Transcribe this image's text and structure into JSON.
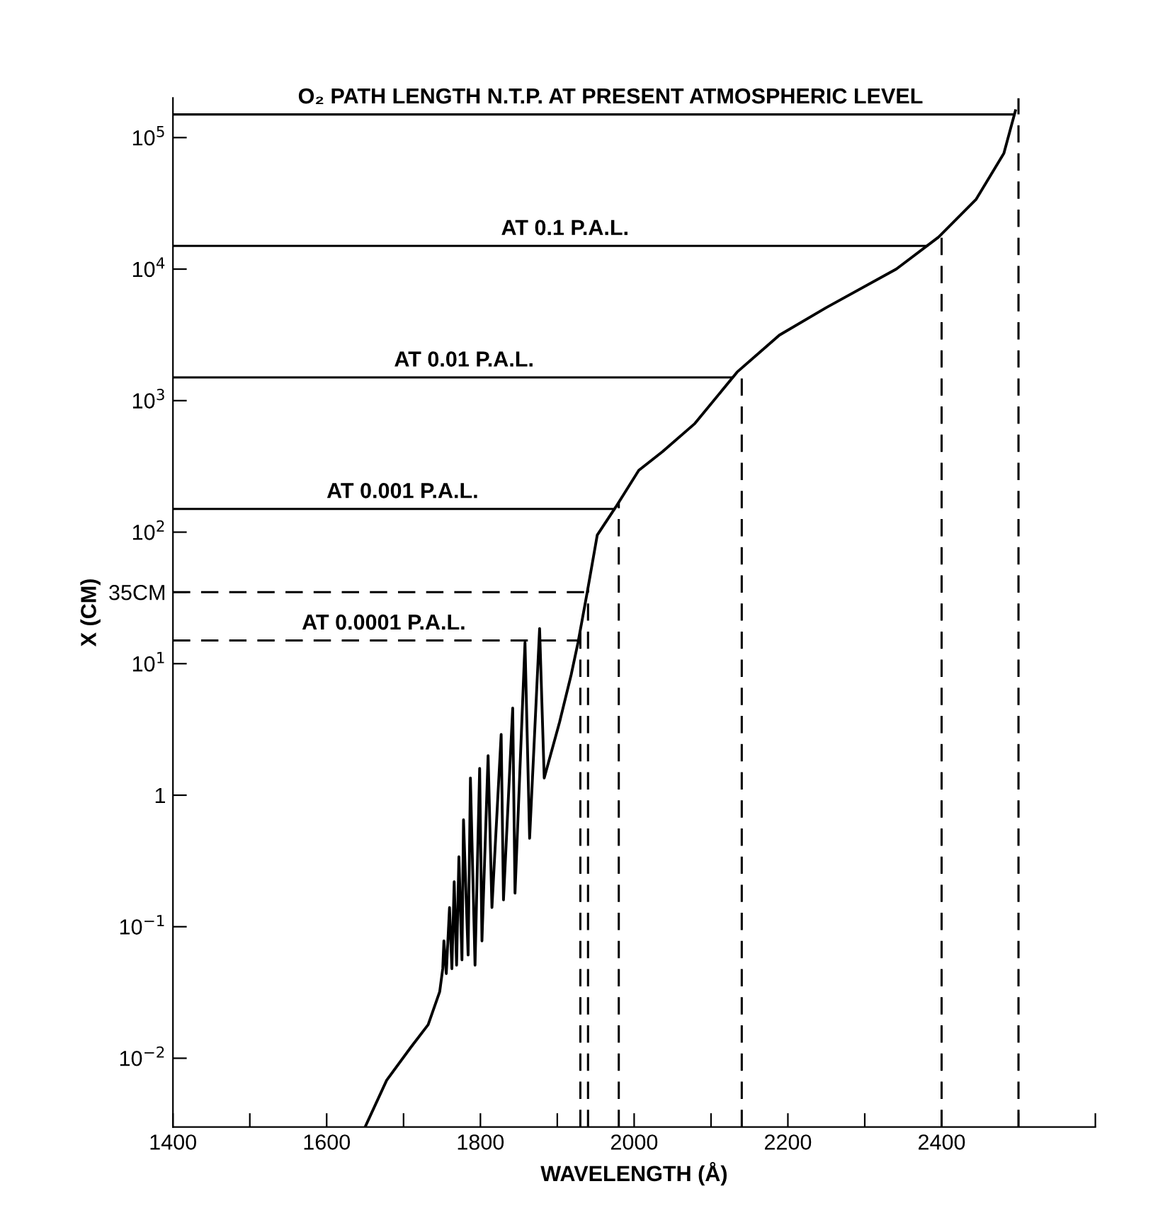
{
  "chart_data": {
    "type": "line",
    "xlabel": "WAVELENGTH (Å)",
    "ylabel": "X (CM)",
    "log": "y",
    "grid": false,
    "marker": "none",
    "line_style": "solid",
    "xlim": [
      1400,
      2600
    ],
    "ylim": [
      0.003,
      200000
    ],
    "xticks": [
      1400,
      {
        "value": 1500,
        "label": null
      },
      1600,
      {
        "value": 1700,
        "label": null
      },
      1800,
      {
        "value": 1900,
        "label": null
      },
      2000,
      {
        "value": 2100,
        "label": null
      },
      2200,
      {
        "value": 2300,
        "label": null
      },
      2400,
      {
        "value": 2500,
        "label": null
      },
      {
        "value": 2600,
        "label": null
      }
    ],
    "yticks": [
      {
        "value": 0.01,
        "label": "10$^{−2}$"
      },
      {
        "value": 0.1,
        "label": "10$^{−1}$"
      },
      1,
      {
        "value": 10,
        "label": "10$^{1}$"
      },
      {
        "value": 35,
        "label": "35CM"
      },
      {
        "value": 100,
        "label": "10$^{2}$"
      },
      {
        "value": 1000,
        "label": "10$^{3}$"
      },
      {
        "value": 10000,
        "label": "10$^{4}$"
      },
      {
        "value": 100000,
        "label": "10$^{5}$"
      }
    ],
    "series": [
      {
        "color": "#000000",
        "x": [
          1650,
          1678,
          1709,
          1732,
          1747,
          1751,
          1752.5,
          1755.6,
          1759.8,
          1762.9,
          1765.9,
          1769,
          1772,
          1776,
          1778,
          1784,
          1787,
          1793,
          1799,
          1802,
          1810,
          1815,
          1827,
          1830,
          1842,
          1845,
          1858,
          1864,
          1877,
          1883,
          1903,
          1918,
          1927,
          1939,
          1952,
          1976,
          2006,
          2037,
          2079,
          2134,
          2189,
          2250,
          2341,
          2396,
          2445,
          2481,
          2496
        ],
        "values": [
          0.003,
          0.0068,
          0.012,
          0.018,
          0.032,
          0.048,
          0.078,
          0.044,
          0.14,
          0.048,
          0.22,
          0.051,
          0.34,
          0.056,
          0.65,
          0.061,
          1.35,
          0.051,
          1.6,
          0.078,
          2.0,
          0.14,
          2.9,
          0.16,
          4.6,
          0.18,
          14.5,
          0.47,
          18.5,
          1.35,
          3.6,
          8.2,
          14.5,
          35,
          95,
          155,
          295,
          410,
          670,
          1650,
          3150,
          5100,
          10000,
          17500,
          34000,
          76000,
          160000
        ]
      }
    ],
    "ref_lines": [
      {
        "axis": "y",
        "value": 150000,
        "label": "O₂ PATH LENGTH N.T.P. AT PRESENT ATMOSPHERIC LEVEL",
        "color": "#000000",
        "line_style": "solid"
      },
      {
        "axis": "y",
        "value": 15000,
        "label": "AT 0.1 P.A.L.",
        "color": "#000000",
        "line_style": "solid"
      },
      {
        "axis": "y",
        "value": 1500,
        "label": "AT 0.01 P.A.L.",
        "color": "#000000",
        "line_style": "solid"
      },
      {
        "axis": "y",
        "value": 150,
        "label": "AT 0.001 P.A.L.",
        "color": "#000000",
        "line_style": "solid"
      },
      {
        "axis": "y",
        "value": 35,
        "label": null,
        "color": "#000000",
        "line_style": "dashed"
      },
      {
        "axis": "y",
        "value": 15,
        "label": "AT 0.0001 P.A.L.",
        "color": "#000000",
        "line_style": "dashed"
      },
      {
        "axis": "x",
        "value": 1930,
        "label": null,
        "color": "#000000",
        "line_style": "dashed"
      },
      {
        "axis": "x",
        "value": 1940,
        "label": null,
        "color": "#000000",
        "line_style": "dashed"
      },
      {
        "axis": "x",
        "value": 1980,
        "label": null,
        "color": "#000000",
        "line_style": "dashed"
      },
      {
        "axis": "x",
        "value": 2140,
        "label": null,
        "color": "#000000",
        "line_style": "dashed"
      },
      {
        "axis": "x",
        "value": 2400,
        "label": null,
        "color": "#000000",
        "line_style": "dashed"
      },
      {
        "axis": "x",
        "value": 2500,
        "label": null,
        "color": "#000000",
        "line_style": "dashed"
      }
    ]
  }
}
